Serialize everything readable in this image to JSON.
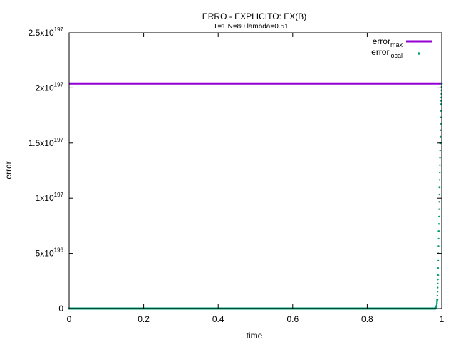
{
  "chart_data": {
    "type": "line",
    "title": "ERRO - EXPLICITO: EX(B)",
    "subtitle": "T=1 N=80 lambda=0.51",
    "xlabel": "time",
    "ylabel": "error",
    "xlim": [
      0,
      1
    ],
    "ylim": [
      0,
      2.5e+197
    ],
    "grid": false,
    "legend_position": "top-right",
    "x_ticks": [
      {
        "value": 0,
        "label": "0"
      },
      {
        "value": 0.2,
        "label": "0.2"
      },
      {
        "value": 0.4,
        "label": "0.4"
      },
      {
        "value": 0.6,
        "label": "0.6"
      },
      {
        "value": 0.8,
        "label": "0.8"
      },
      {
        "value": 1,
        "label": "1"
      }
    ],
    "y_ticks": [
      {
        "value": 0,
        "mant": "0",
        "exp": ""
      },
      {
        "value": 5e+196,
        "mant": "5x10",
        "exp": "196"
      },
      {
        "value": 1e+197,
        "mant": "1x10",
        "exp": "197"
      },
      {
        "value": 1.5e+197,
        "mant": "1.5x10",
        "exp": "197"
      },
      {
        "value": 2e+197,
        "mant": "2x10",
        "exp": "197"
      },
      {
        "value": 2.5e+197,
        "mant": "2.5x10",
        "exp": "197"
      }
    ],
    "series": [
      {
        "name": "error",
        "name_sub": "max",
        "style": "line",
        "color": "#9400d3",
        "x": [
          0,
          1
        ],
        "y": [
          2.04e+197,
          2.04e+197
        ]
      },
      {
        "name": "error",
        "name_sub": "local",
        "style": "points",
        "color": "#009e73",
        "x": [
          0,
          0.1,
          0.2,
          0.3,
          0.4,
          0.5,
          0.6,
          0.7,
          0.8,
          0.9,
          0.95,
          0.975,
          0.98,
          0.983,
          0.986,
          0.988,
          0.99,
          0.992,
          0.994,
          0.996,
          0.998,
          1.0
        ],
        "y": [
          0,
          0,
          0,
          0,
          0,
          0,
          0,
          0,
          0,
          0,
          0,
          0,
          1e+194,
          5e+194,
          2e+195,
          8e+195,
          3e+196,
          7e+196,
          1.1e+197,
          1.5e+197,
          1.85e+197,
          2.04e+197
        ]
      }
    ]
  }
}
